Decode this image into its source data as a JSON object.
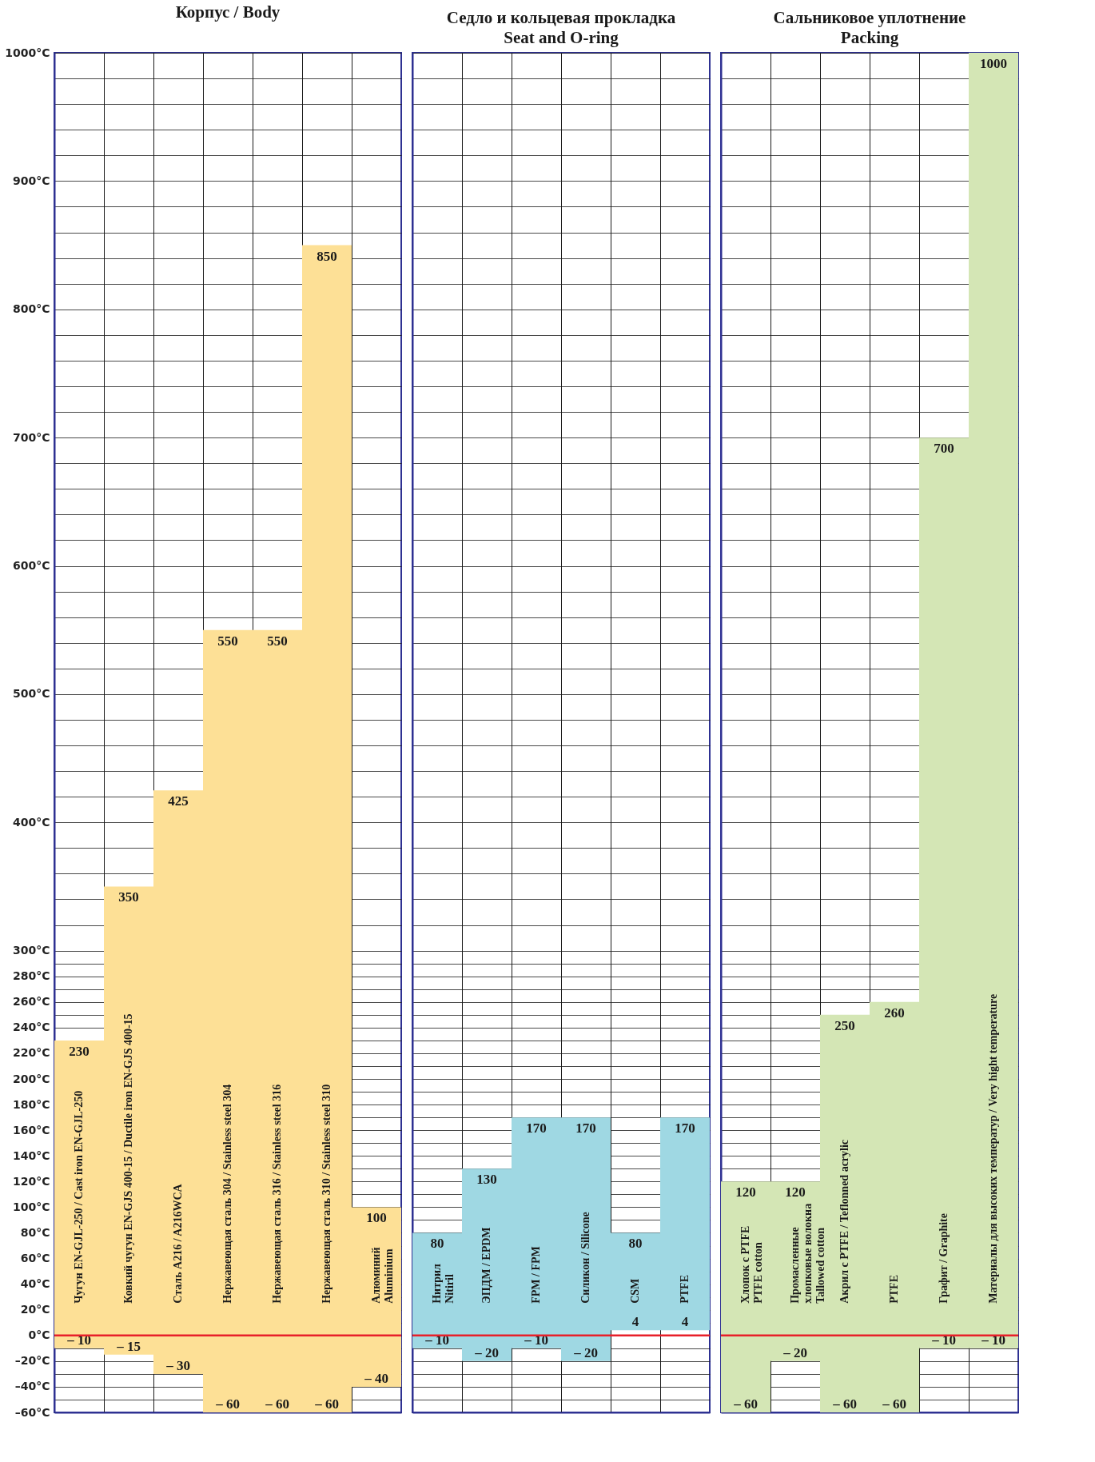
{
  "chart_data": [
    {
      "type": "bar",
      "title": "Корпус / Body",
      "categories": [
        "Чугун EN-GJL-250 / Cast iron EN-GJL-250",
        "Ковкий чугун EN-GJS 400-15 / Ductile iron EN-GJS 400-15",
        "Сталь A216 / A216WCA",
        "Нержавеющая сталь 304 / Stainless steel 304",
        "Нержавеющая сталь 316 / Stainless steel 316",
        "Нержавеющая сталь 310 / Stainless steel 310",
        "Алюминий\nAluminium"
      ],
      "base": [
        -10,
        -15,
        -30,
        -60,
        -60,
        -60,
        -40
      ],
      "values": [
        240,
        365,
        455,
        610,
        610,
        910,
        140
      ],
      "colors": [
        "#fde096",
        "#fde096",
        "#fde096",
        "#fde096",
        "#fde096",
        "#fde096",
        "#fde096"
      ],
      "value_labels": [
        "230",
        "350",
        "425",
        "550",
        "550",
        "850",
        "100"
      ],
      "annotations": [
        {
          "text": "– 10",
          "x": "Чугун EN-GJL-250 / Cast iron EN-GJL-250",
          "y": -10
        },
        {
          "text": "– 15",
          "x": "Ковкий чугун EN-GJS 400-15 / Ductile iron EN-GJS 400-15",
          "y": -15
        },
        {
          "text": "– 30",
          "x": "Сталь A216 / A216WCA",
          "y": -30
        },
        {
          "text": "– 60",
          "x": "Нержавеющая сталь 304 / Stainless steel 304",
          "y": -60
        },
        {
          "text": "– 60",
          "x": "Нержавеющая сталь 316 / Stainless steel 316",
          "y": -60
        },
        {
          "text": "– 60",
          "x": "Нержавеющая сталь 310 / Stainless steel 310",
          "y": -60
        },
        {
          "text": "– 40",
          "x": "Алюминий\nAluminium",
          "y": -40
        }
      ],
      "ref_lines": [
        {
          "axis": "y",
          "value": 0,
          "color": "#e8202a"
        }
      ],
      "ylim": [
        -60,
        1000
      ],
      "yticks": [
        {
          "value": -60,
          "label": "–60°C"
        },
        {
          "value": -50,
          "label": null
        },
        {
          "value": -40,
          "label": "–40°C"
        },
        {
          "value": -30,
          "label": null
        },
        {
          "value": -20,
          "label": "–20°C"
        },
        {
          "value": -10,
          "label": null
        },
        {
          "value": 0,
          "label": "0°C"
        },
        {
          "value": 10,
          "label": null
        },
        {
          "value": 20,
          "label": "20°C"
        },
        {
          "value": 30,
          "label": null
        },
        {
          "value": 40,
          "label": "40°C"
        },
        {
          "value": 50,
          "label": null
        },
        {
          "value": 60,
          "label": "60°C"
        },
        {
          "value": 70,
          "label": null
        },
        {
          "value": 80,
          "label": "80°C"
        },
        {
          "value": 90,
          "label": null
        },
        {
          "value": 100,
          "label": "100°C"
        },
        {
          "value": 110,
          "label": null
        },
        {
          "value": 120,
          "label": "120°C"
        },
        {
          "value": 130,
          "label": null
        },
        {
          "value": 140,
          "label": "140°C"
        },
        {
          "value": 150,
          "label": null
        },
        {
          "value": 160,
          "label": "160°C"
        },
        {
          "value": 170,
          "label": null
        },
        {
          "value": 180,
          "label": "180°C"
        },
        {
          "value": 190,
          "label": null
        },
        {
          "value": 200,
          "label": "200°C"
        },
        {
          "value": 210,
          "label": null
        },
        {
          "value": 220,
          "label": "220°C"
        },
        {
          "value": 230,
          "label": null
        },
        {
          "value": 240,
          "label": "240°C"
        },
        {
          "value": 250,
          "label": null
        },
        {
          "value": 260,
          "label": "260°C"
        },
        {
          "value": 270,
          "label": null
        },
        {
          "value": 280,
          "label": "280°C"
        },
        {
          "value": 290,
          "label": null
        },
        {
          "value": 300,
          "label": "300°C"
        },
        {
          "value": 320,
          "label": null
        },
        {
          "value": 340,
          "label": null
        },
        {
          "value": 360,
          "label": null
        },
        {
          "value": 380,
          "label": null
        },
        {
          "value": 400,
          "label": "400°C"
        },
        {
          "value": 420,
          "label": null
        },
        {
          "value": 440,
          "label": null
        },
        {
          "value": 460,
          "label": null
        },
        {
          "value": 480,
          "label": null
        },
        {
          "value": 500,
          "label": "500°C"
        },
        {
          "value": 520,
          "label": null
        },
        {
          "value": 540,
          "label": null
        },
        {
          "value": 560,
          "label": null
        },
        {
          "value": 580,
          "label": null
        },
        {
          "value": 600,
          "label": "600°C"
        },
        {
          "value": 620,
          "label": null
        },
        {
          "value": 640,
          "label": null
        },
        {
          "value": 660,
          "label": null
        },
        {
          "value": 680,
          "label": null
        },
        {
          "value": 700,
          "label": "700°C"
        },
        {
          "value": 720,
          "label": null
        },
        {
          "value": 740,
          "label": null
        },
        {
          "value": 760,
          "label": null
        },
        {
          "value": 780,
          "label": null
        },
        {
          "value": 800,
          "label": "800°C"
        },
        {
          "value": 820,
          "label": null
        },
        {
          "value": 840,
          "label": null
        },
        {
          "value": 860,
          "label": null
        },
        {
          "value": 880,
          "label": null
        },
        {
          "value": 900,
          "label": "900°C"
        },
        {
          "value": 920,
          "label": null
        },
        {
          "value": 940,
          "label": null
        },
        {
          "value": 960,
          "label": null
        },
        {
          "value": 980,
          "label": null
        },
        {
          "value": 1000,
          "label": "1000°C"
        }
      ],
      "grid": true,
      "legend": false
    },
    {
      "type": "bar",
      "title": "Седло и кольцевая прокладка\nSeat and O-ring",
      "categories": [
        "Нитрил\nNitiril",
        "ЭПДМ / EPDM",
        "FPM / FPM",
        "Силикон / Silicone",
        "CSM",
        "PTFE"
      ],
      "base": [
        -10,
        -20,
        -10,
        -20,
        4,
        4
      ],
      "values": [
        90,
        150,
        180,
        190,
        76,
        166
      ],
      "colors": [
        "#9fd8e3",
        "#9fd8e3",
        "#9fd8e3",
        "#9fd8e3",
        "#9fd8e3",
        "#9fd8e3"
      ],
      "value_labels": [
        "80",
        "130",
        "170",
        "170",
        "80",
        "170"
      ],
      "annotations": [
        {
          "text": "– 10",
          "x": "Нитрил\nNitiril",
          "y": -10
        },
        {
          "text": "– 20",
          "x": "ЭПДМ / EPDM",
          "y": -20
        },
        {
          "text": "– 10",
          "x": "FPM / FPM",
          "y": -10
        },
        {
          "text": "– 20",
          "x": "Силикон / Silicone",
          "y": -20
        },
        {
          "text": "4",
          "x": "CSM",
          "y": 4
        },
        {
          "text": "4",
          "x": "PTFE",
          "y": 4
        }
      ],
      "ref_lines": [
        {
          "axis": "y",
          "value": 0,
          "color": "#e8202a"
        }
      ],
      "ylim": [
        -60,
        1000
      ],
      "yticks": [
        -60,
        -50,
        -40,
        -30,
        -20,
        -10,
        0,
        10,
        20,
        30,
        40,
        50,
        60,
        70,
        80,
        90,
        100,
        110,
        120,
        130,
        140,
        150,
        160,
        170,
        180,
        190,
        200,
        210,
        220,
        230,
        240,
        250,
        260,
        270,
        280,
        290,
        300,
        320,
        340,
        360,
        380,
        400,
        420,
        440,
        460,
        480,
        500,
        520,
        540,
        560,
        580,
        600,
        620,
        640,
        660,
        680,
        700,
        720,
        740,
        760,
        780,
        800,
        820,
        840,
        860,
        880,
        900,
        920,
        940,
        960,
        980,
        1000
      ],
      "tick_labels": "x",
      "grid": true,
      "legend": false
    },
    {
      "type": "bar",
      "title": "Сальниковое уплотнение\nPacking",
      "categories": [
        "Хлопок с PTFE\nPTFE cotton",
        "Промасленные\nхлопковые волокна\nTallowed cotton",
        "Акрил с PTFE / Teflonned acrylic",
        "PTFE",
        "Графит / Graphite",
        "Материалы для высоких температур / Very hight temperature"
      ],
      "base": [
        -60,
        -20,
        -60,
        -60,
        -10,
        -10
      ],
      "values": [
        180,
        140,
        310,
        320,
        710,
        1010
      ],
      "colors": [
        "#d4e6b5",
        "#d4e6b5",
        "#d4e6b5",
        "#d4e6b5",
        "#d4e6b5",
        "#d4e6b5"
      ],
      "value_labels": [
        "120",
        "120",
        "250",
        "260",
        "700",
        "1000"
      ],
      "annotations": [
        {
          "text": "– 60",
          "x": "Хлопок с PTFE\nPTFE cotton",
          "y": -60
        },
        {
          "text": "– 20",
          "x": "Промасленные\nхлопковые волокна\nTallowed cotton",
          "y": -20
        },
        {
          "text": "– 60",
          "x": "Акрил с PTFE / Teflonned acrylic",
          "y": -60
        },
        {
          "text": "– 60",
          "x": "PTFE",
          "y": -60
        },
        {
          "text": "– 10",
          "x": "Графит / Graphite",
          "y": -10
        },
        {
          "text": "– 10",
          "x": "Материалы для высоких температур / Very hight temperature",
          "y": -10
        }
      ],
      "ref_lines": [
        {
          "axis": "y",
          "value": 0,
          "color": "#e8202a"
        }
      ],
      "ylim": [
        -60,
        1000
      ],
      "yticks": [
        -60,
        -50,
        -40,
        -30,
        -20,
        -10,
        0,
        10,
        20,
        30,
        40,
        50,
        60,
        70,
        80,
        90,
        100,
        110,
        120,
        130,
        140,
        150,
        160,
        170,
        180,
        190,
        200,
        210,
        220,
        230,
        240,
        250,
        260,
        270,
        280,
        290,
        300,
        320,
        340,
        360,
        380,
        400,
        420,
        440,
        460,
        480,
        500,
        520,
        540,
        560,
        580,
        600,
        620,
        640,
        660,
        680,
        700,
        720,
        740,
        760,
        780,
        800,
        820,
        840,
        860,
        880,
        900,
        920,
        940,
        960,
        980,
        1000
      ],
      "tick_labels": "x",
      "grid": true,
      "legend": false
    }
  ]
}
